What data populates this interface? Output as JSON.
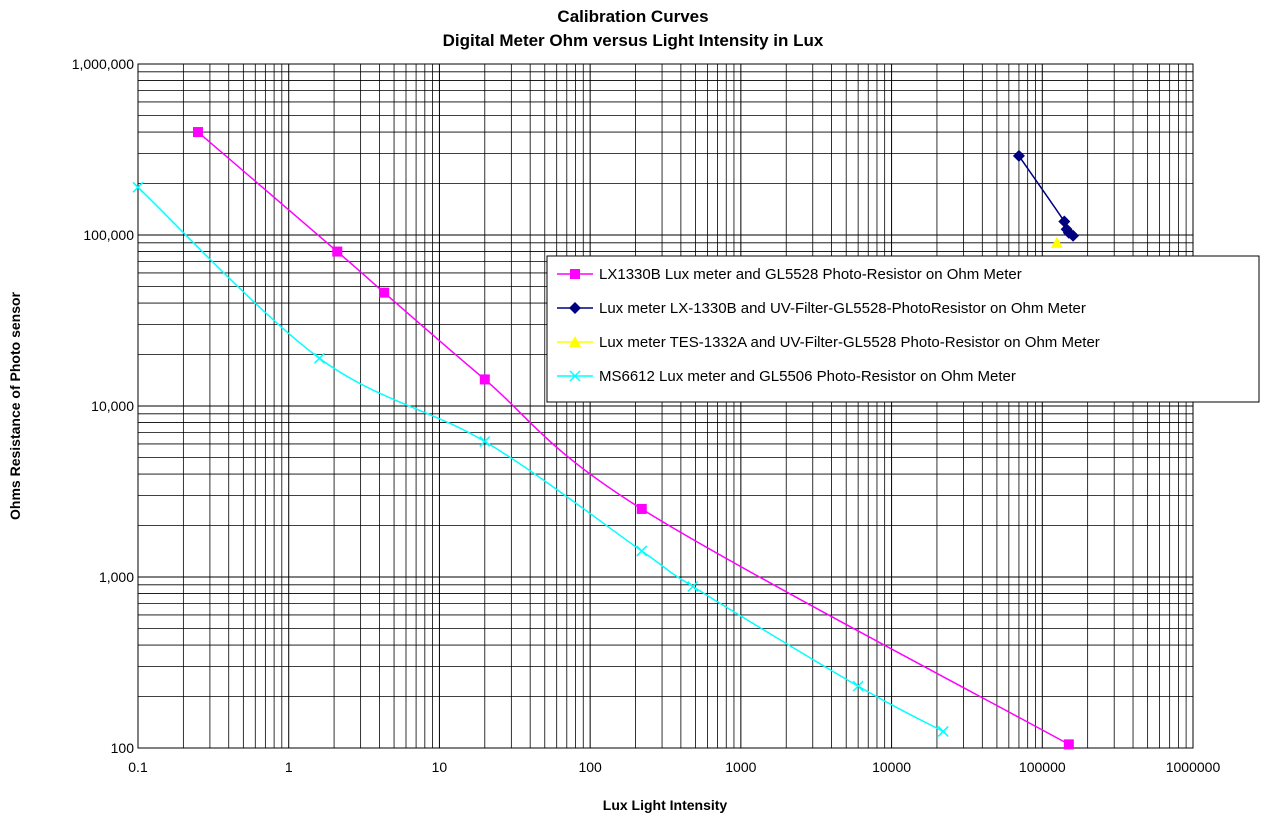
{
  "chart_data": {
    "type": "line",
    "title": "Calibration Curves",
    "subtitle": "Digital Meter Ohm versus Light Intensity in Lux",
    "xlabel": "Lux Light Intensity",
    "ylabel": "Ohms Resistance of Photo sensor",
    "xscale": "log",
    "yscale": "log",
    "xlim": [
      0.1,
      1000000
    ],
    "ylim": [
      100,
      1000000
    ],
    "grid": true,
    "legend_position": "right",
    "x_tick_labels": [
      "0.1",
      "1",
      "10",
      "100",
      "1000",
      "10000",
      "100000",
      "1000000"
    ],
    "y_tick_labels": [
      "100",
      "1,000",
      "10,000",
      "100,000",
      "1,000,000"
    ],
    "series": [
      {
        "name": "LX1330B Lux meter and GL5528 Photo-Resistor on Ohm Meter",
        "color": "#ff00ff",
        "marker": "square",
        "x": [
          0.25,
          2.1,
          4.3,
          20,
          220,
          150000
        ],
        "y": [
          400000,
          80000,
          46000,
          14300,
          2500,
          105
        ]
      },
      {
        "name": "Lux meter LX-1330B and UV-Filter-GL5528-PhotoResistor on Ohm Meter",
        "color": "#000080",
        "marker": "diamond",
        "x": [
          70000,
          140000,
          145000,
          150000,
          160000
        ],
        "y": [
          290000,
          120000,
          108000,
          103000,
          99000
        ]
      },
      {
        "name": "Lux meter TES-1332A and UV-Filter-GL5528 Photo-Resistor on Ohm Meter",
        "color": "#ffff00",
        "marker": "triangle",
        "x": [
          125000
        ],
        "y": [
          90000
        ]
      },
      {
        "name": "MS6612 Lux meter and GL5506 Photo-Resistor on Ohm Meter",
        "color": "#00ffff",
        "marker": "x",
        "x": [
          0.1,
          1.6,
          20,
          220,
          480,
          6000,
          22000
        ],
        "y": [
          190000,
          19000,
          6200,
          1420,
          880,
          230,
          125
        ]
      }
    ]
  }
}
